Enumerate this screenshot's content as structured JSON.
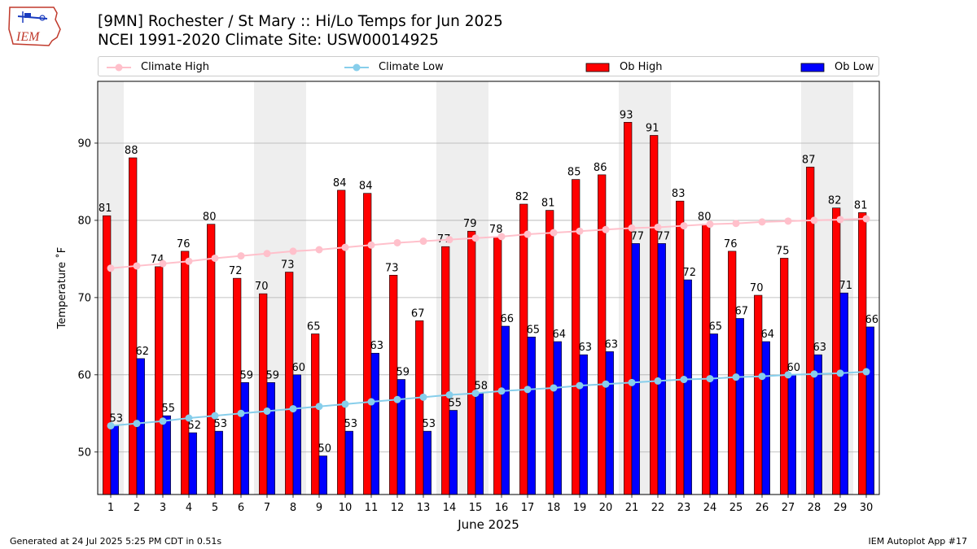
{
  "header": {
    "title_line1": "[9MN] Rochester / St Mary :: Hi/Lo Temps for Jun 2025",
    "title_line2": "NCEI 1991-2020 Climate Site: USW00014925",
    "logo_text": "IEM"
  },
  "footer": {
    "generated": "Generated at 24 Jul 2025 5:25 PM CDT in 0.51s",
    "app": "IEM Autoplot App #17"
  },
  "colors": {
    "climate_high": "#ffc0cb",
    "climate_low": "#87ceeb",
    "ob_high": "#ff0000",
    "ob_low": "#0000ff",
    "weekend_band": "#eeeeee",
    "grid": "#b0b0b0"
  },
  "chart_data": {
    "type": "bar",
    "xlabel": "June 2025",
    "ylabel": "Temperature ˚F",
    "ylim": [
      44.5,
      98
    ],
    "xlim": [
      0.5,
      30.5
    ],
    "yticks": [
      50,
      60,
      70,
      80,
      90
    ],
    "grid": "horizontal",
    "legend_placement": "top",
    "categories": [
      1,
      2,
      3,
      4,
      5,
      6,
      7,
      8,
      9,
      10,
      11,
      12,
      13,
      14,
      15,
      16,
      17,
      18,
      19,
      20,
      21,
      22,
      23,
      24,
      25,
      26,
      27,
      28,
      29,
      30
    ],
    "weekend_days": [
      1,
      7,
      8,
      14,
      15,
      21,
      22,
      28,
      29
    ],
    "series": [
      {
        "name": "Climate High",
        "kind": "line",
        "values": [
          73.8,
          74.1,
          74.4,
          74.7,
          75.1,
          75.4,
          75.7,
          76.0,
          76.2,
          76.5,
          76.8,
          77.1,
          77.3,
          77.5,
          77.7,
          77.9,
          78.2,
          78.4,
          78.6,
          78.8,
          79.0,
          79.1,
          79.3,
          79.5,
          79.6,
          79.8,
          79.9,
          80.0,
          80.1,
          80.2
        ]
      },
      {
        "name": "Climate Low",
        "kind": "line",
        "values": [
          53.4,
          53.7,
          54.0,
          54.4,
          54.7,
          55.0,
          55.3,
          55.6,
          55.9,
          56.2,
          56.5,
          56.8,
          57.1,
          57.4,
          57.6,
          57.9,
          58.1,
          58.3,
          58.6,
          58.8,
          59.0,
          59.2,
          59.4,
          59.5,
          59.7,
          59.8,
          60.0,
          60.1,
          60.2,
          60.4
        ]
      },
      {
        "name": "Ob High",
        "kind": "bar",
        "values": [
          80.6,
          88.1,
          74.0,
          76.0,
          79.5,
          72.5,
          70.5,
          73.3,
          65.3,
          83.9,
          83.5,
          72.9,
          67.0,
          76.6,
          78.6,
          77.9,
          82.1,
          81.3,
          85.3,
          85.9,
          92.7,
          91.0,
          82.5,
          79.5,
          76.0,
          70.3,
          75.1,
          86.9,
          81.6,
          81.0
        ],
        "labels": [
          81,
          88,
          74,
          76,
          80,
          72,
          70,
          73,
          65,
          84,
          84,
          73,
          67,
          77,
          79,
          78,
          82,
          81,
          85,
          86,
          93,
          91,
          83,
          80,
          76,
          70,
          75,
          87,
          82,
          81
        ]
      },
      {
        "name": "Ob Low",
        "kind": "bar",
        "values": [
          53.4,
          62.1,
          54.7,
          52.5,
          52.7,
          59.0,
          59.0,
          60.0,
          49.5,
          52.7,
          62.8,
          59.4,
          52.7,
          55.4,
          57.6,
          66.3,
          64.9,
          64.3,
          62.6,
          63.0,
          77.0,
          77.0,
          72.3,
          65.3,
          67.3,
          64.3,
          60.0,
          62.6,
          70.6,
          66.2
        ],
        "labels": [
          53,
          62,
          55,
          52,
          53,
          59,
          59,
          60,
          50,
          53,
          63,
          59,
          53,
          55,
          58,
          66,
          65,
          64,
          63,
          63,
          77,
          77,
          72,
          65,
          67,
          64,
          60,
          63,
          71,
          66
        ]
      }
    ]
  }
}
